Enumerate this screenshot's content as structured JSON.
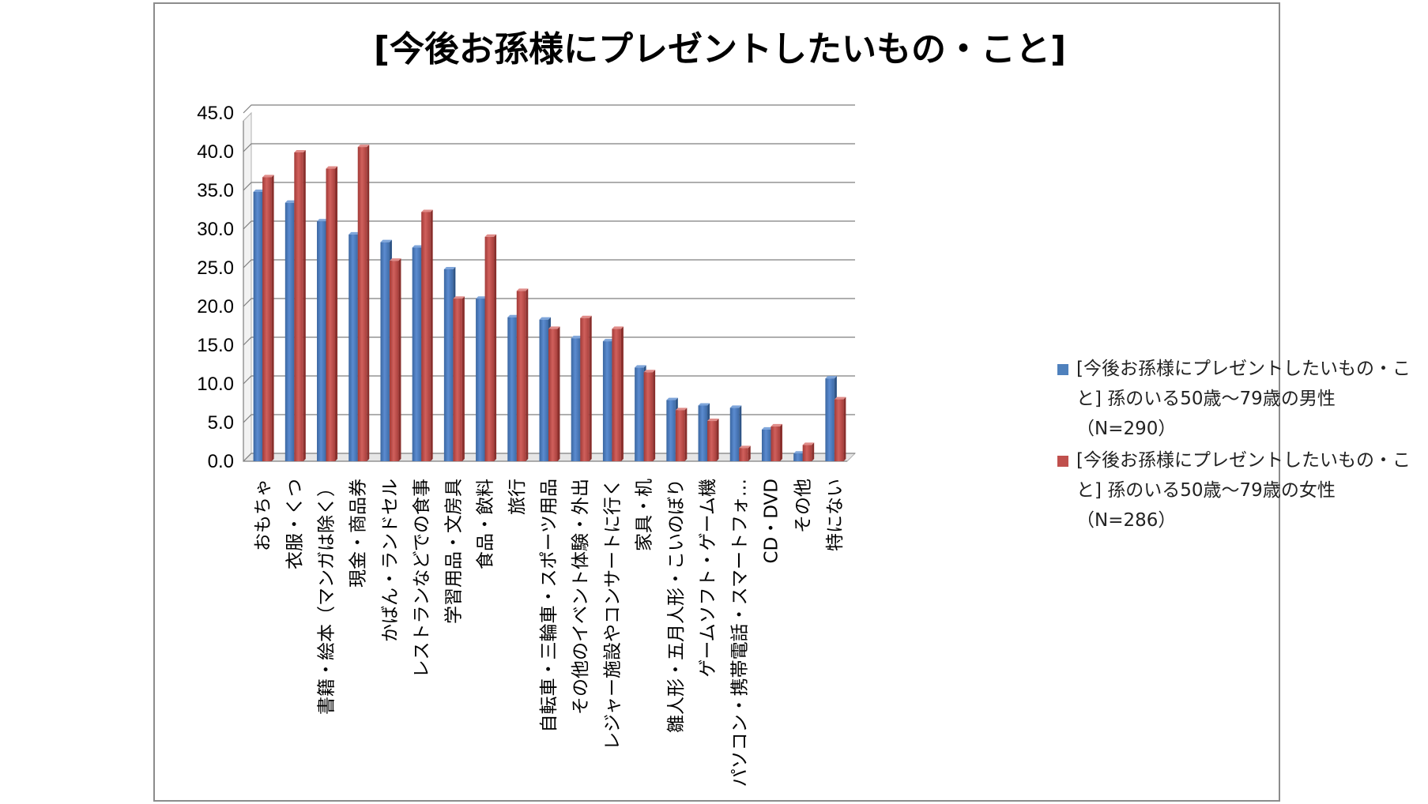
{
  "chart_data": {
    "type": "bar",
    "title": "[今後お孫様にプレゼントしたいもの・こと]",
    "xlabel": "",
    "ylabel": "",
    "ylim": [
      0,
      45
    ],
    "yticks": [
      "0.0",
      "5.0",
      "10.0",
      "15.0",
      "20.0",
      "25.0",
      "30.0",
      "35.0",
      "40.0",
      "45.0"
    ],
    "grid": true,
    "legend_position": "right",
    "categories": [
      "おもちゃ",
      "衣服・くつ",
      "書籍・絵本（マンガは除く）",
      "現金・商品券",
      "かばん・ランドセル",
      "レストランなどでの食事",
      "学習用品・文房具",
      "食品・飲料",
      "旅行",
      "自転車・三輪車・スポーツ用品",
      "その他のイベント体験・外出",
      "レジャー施設やコンサートに行く",
      "家具・机",
      "雛人形・五月人形・こいのぼり",
      "ゲームソフト・ゲーム機",
      "パソコン・携帯電話・スマートフォ…",
      "CD・DVD",
      "その他",
      "特にない"
    ],
    "series": [
      {
        "name": "[今後お孫様にプレゼントしたいもの・こと] 孫のいる50歳～79歳の男性（N=290）",
        "color": "#4f81bd",
        "values": [
          34.8,
          33.4,
          31.0,
          29.3,
          28.3,
          27.6,
          24.8,
          21.0,
          18.6,
          18.3,
          15.9,
          15.5,
          12.1,
          7.9,
          7.2,
          6.9,
          4.1,
          1.0,
          10.7
        ]
      },
      {
        "name": "[今後お孫様にプレゼントしたいもの・こと] 孫のいる50歳～79歳の女性（N=286）",
        "color": "#c0504d",
        "values": [
          36.7,
          39.9,
          37.8,
          40.6,
          25.9,
          32.2,
          21.0,
          29.0,
          22.0,
          17.1,
          18.5,
          17.1,
          11.5,
          6.6,
          5.2,
          1.7,
          4.5,
          2.1,
          8.0
        ]
      }
    ]
  }
}
